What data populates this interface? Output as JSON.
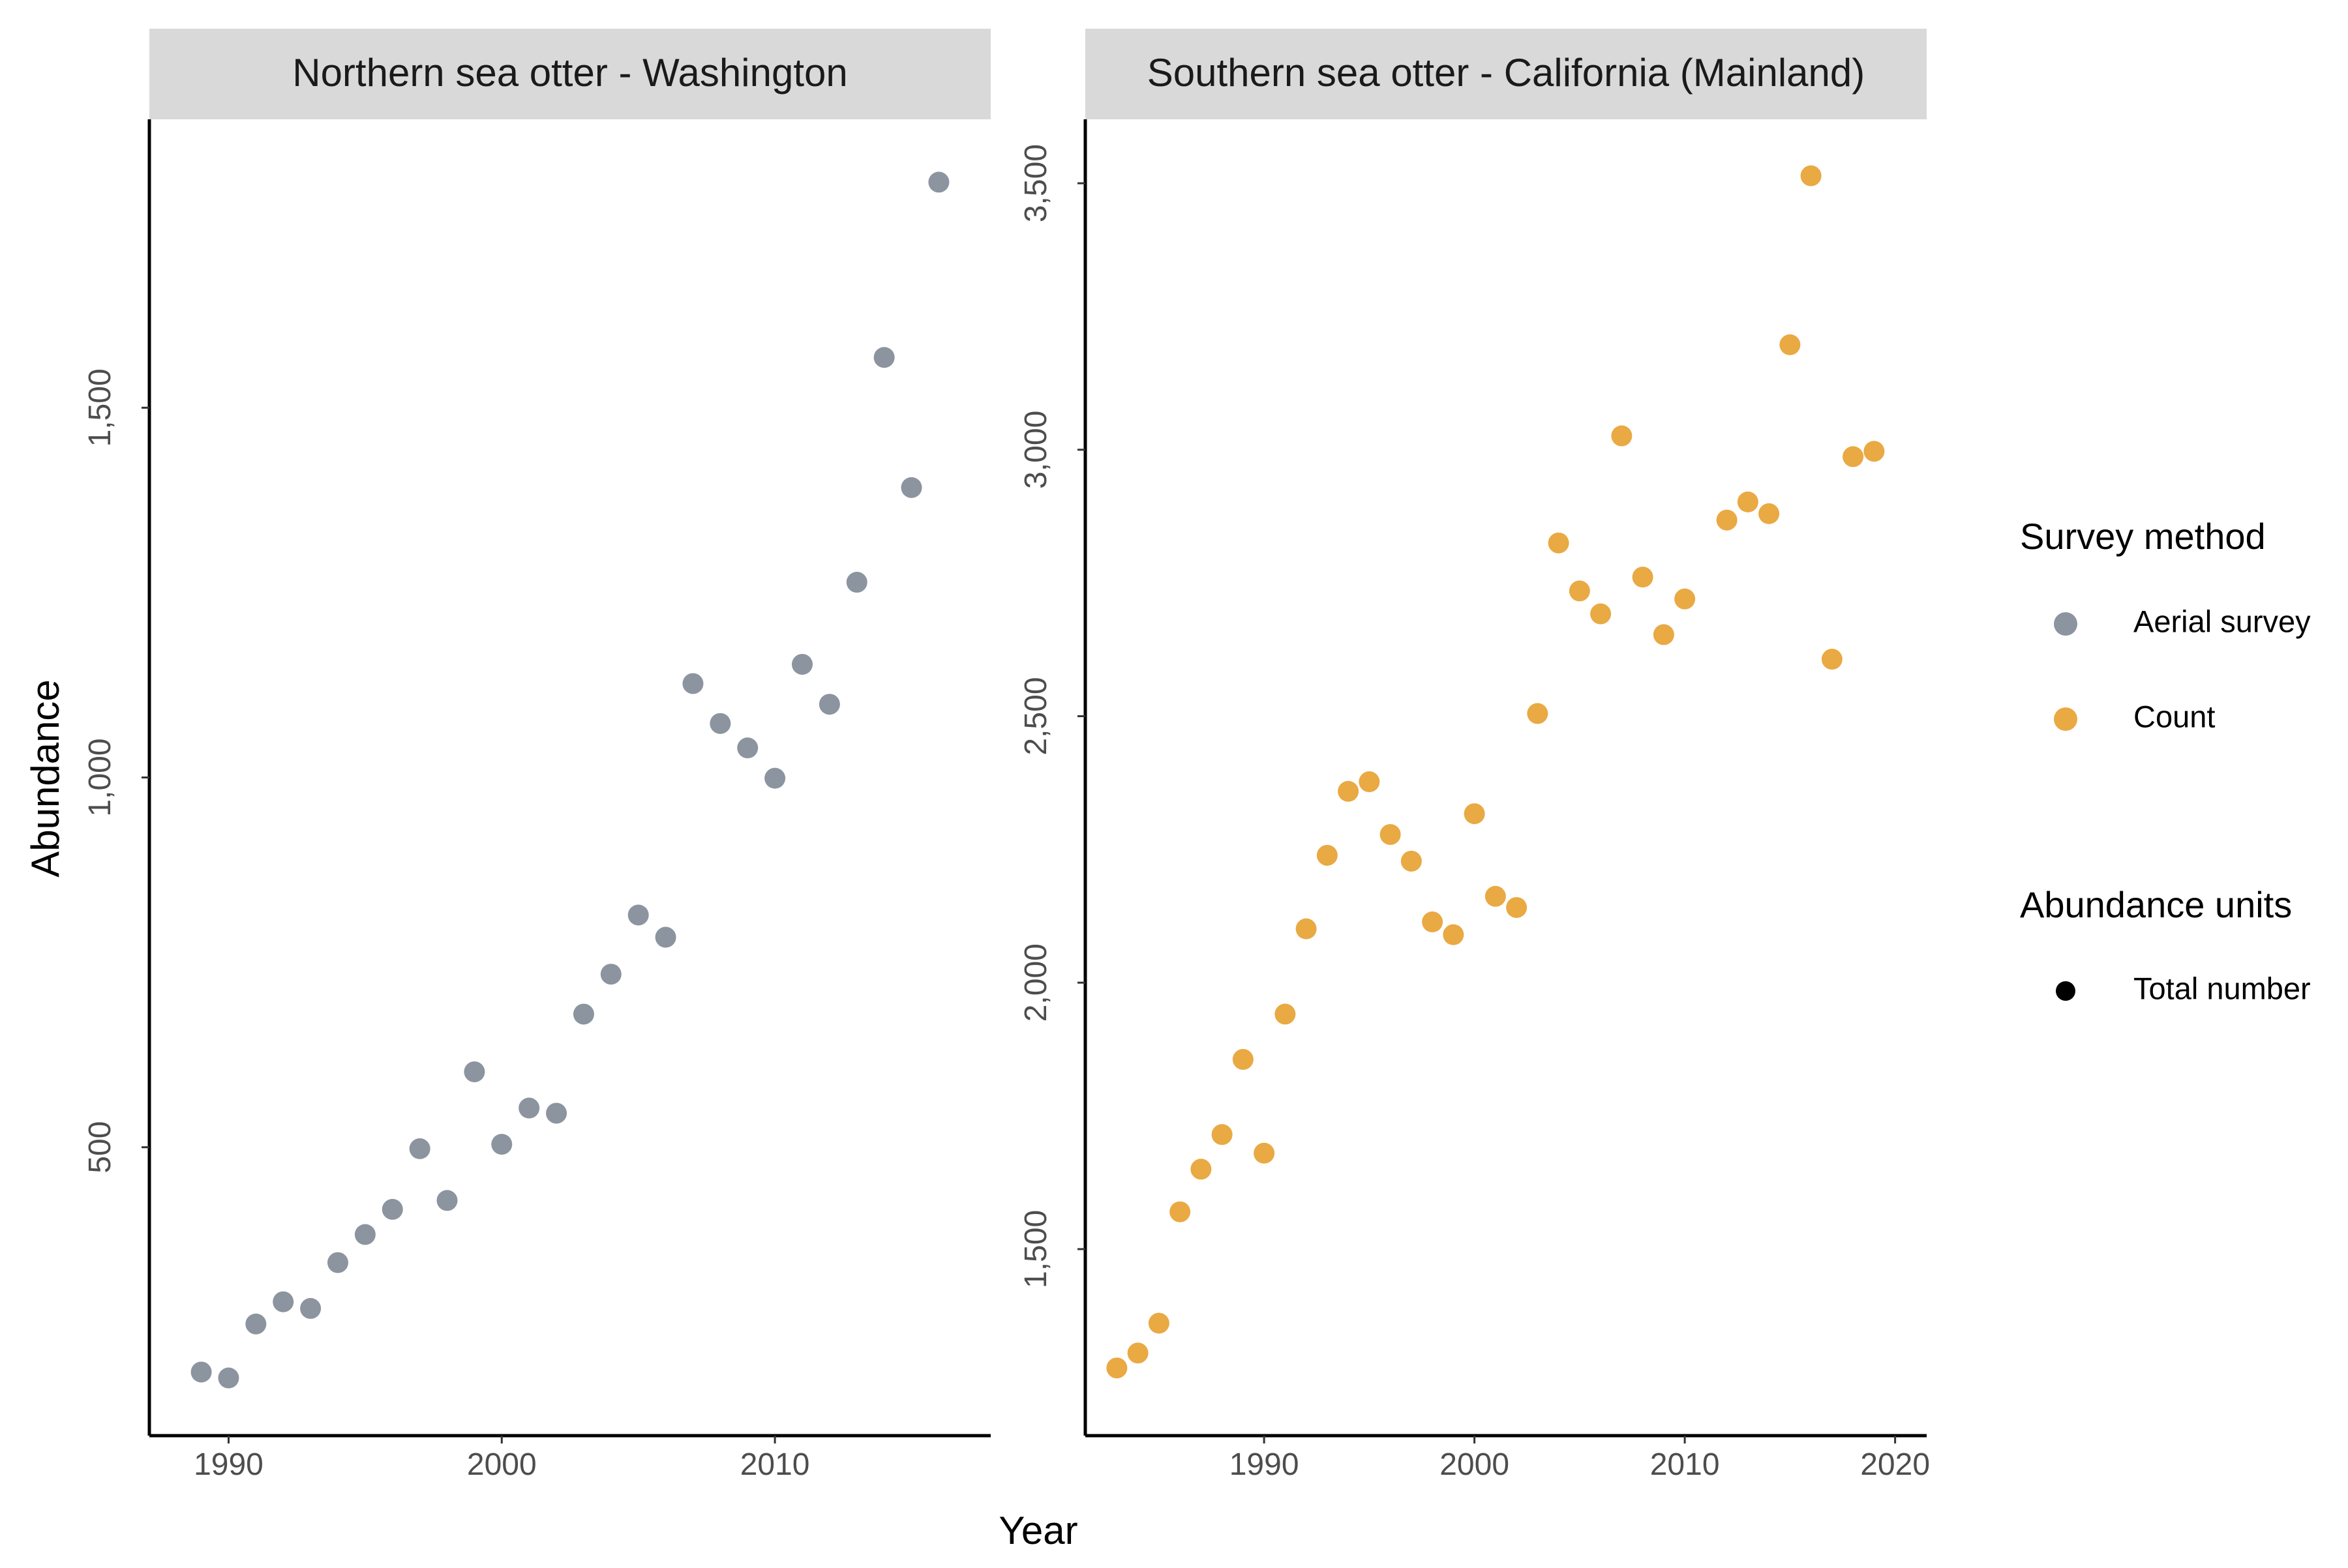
{
  "chart_data": [
    {
      "type": "scatter",
      "title": "Northern sea otter - Washington",
      "xlabel": "Year",
      "ylabel": "Abundance",
      "xlim": [
        1987.1,
        2017.9
      ],
      "ylim": [
        110,
        1890
      ],
      "x_ticks": [
        1990,
        2000,
        2010
      ],
      "x_tick_labels": [
        "1990",
        "2000",
        "2010"
      ],
      "y_ticks": [
        500,
        1000,
        1500
      ],
      "y_tick_labels": [
        "500",
        "1,000",
        "1,500"
      ],
      "grid": false,
      "series": [
        {
          "method": "Aerial survey",
          "color": "#8B949F",
          "x": [
            1989,
            1990,
            1991,
            1992,
            1993,
            1994,
            1995,
            1996,
            1997,
            1998,
            1999,
            2000,
            2001,
            2002,
            2003,
            2004,
            2005,
            2006,
            2007,
            2008,
            2009,
            2010,
            2011,
            2012,
            2013,
            2014,
            2015,
            2016
          ],
          "y": [
            196,
            188,
            261,
            291,
            282,
            344,
            382,
            416,
            498,
            428,
            602,
            504,
            553,
            546,
            680,
            734,
            814,
            784,
            1127,
            1073,
            1040,
            999,
            1153,
            1099,
            1264,
            1568,
            1392,
            1805
          ]
        }
      ]
    },
    {
      "type": "scatter",
      "title": "Southern sea otter - California (Mainland)",
      "xlabel": "Year",
      "ylabel": "Abundance",
      "xlim": [
        1981.5,
        2021.5
      ],
      "ylim": [
        1150,
        3620
      ],
      "x_ticks": [
        1990,
        2000,
        2010,
        2020
      ],
      "x_tick_labels": [
        "1990",
        "2000",
        "2010",
        "2020"
      ],
      "y_ticks": [
        1500,
        2000,
        2500,
        3000,
        3500
      ],
      "y_tick_labels": [
        "1,500",
        "2,000",
        "2,500",
        "3,000",
        "3,500"
      ],
      "grid": false,
      "series": [
        {
          "method": "Count",
          "color": "#E9A943",
          "x": [
            1983,
            1984,
            1985,
            1986,
            1987,
            1988,
            1989,
            1990,
            1991,
            1992,
            1993,
            1994,
            1995,
            1996,
            1997,
            1998,
            1999,
            2000,
            2001,
            2002,
            2003,
            2004,
            2005,
            2006,
            2007,
            2008,
            2009,
            2010,
            2012,
            2013,
            2014,
            2015,
            2016,
            2017,
            2018,
            2019
          ],
          "y": [
            1277,
            1305,
            1361,
            1570,
            1650,
            1715,
            1856,
            1680,
            1941,
            2101,
            2239,
            2359,
            2377,
            2278,
            2228,
            2114,
            2090,
            2317,
            2162,
            2141,
            2505,
            2825,
            2735,
            2692,
            3026,
            2761,
            2653,
            2720,
            2868,
            2902,
            2880,
            3197,
            3514,
            2607,
            2987,
            2997
          ]
        }
      ]
    }
  ],
  "x_axis_title": "Year",
  "y_axis_title": "Abundance",
  "legend": {
    "placement": "right",
    "method_title": "Survey method",
    "method_items": [
      {
        "label": "Aerial survey",
        "color": "#8B949F"
      },
      {
        "label": "Count",
        "color": "#E9A943"
      }
    ],
    "units_title": "Abundance units",
    "units_items": [
      {
        "label": "Total number",
        "color": "#000000"
      }
    ]
  }
}
